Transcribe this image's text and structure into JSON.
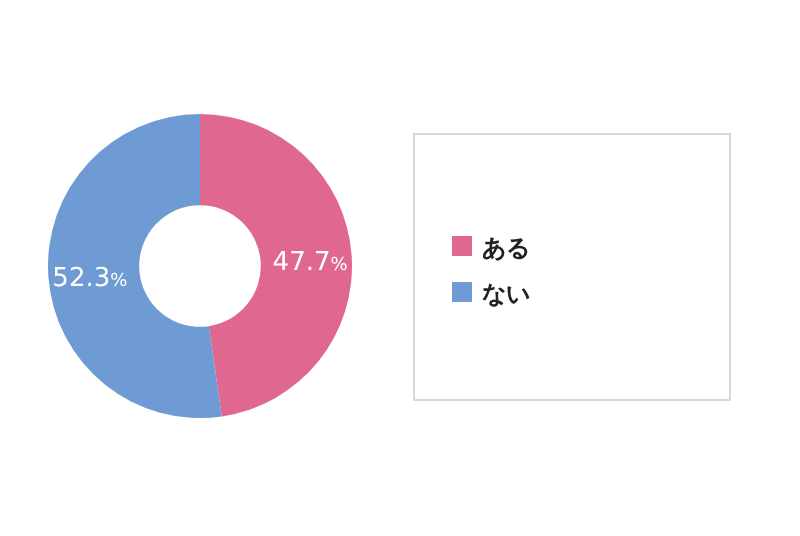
{
  "chart_data": {
    "type": "donut",
    "categories": [
      "ある",
      "ない"
    ],
    "values": [
      47.7,
      52.3
    ],
    "colors": [
      "#e0678f",
      "#6f9bd4"
    ],
    "value_labels": [
      "47.7%",
      "52.3%"
    ],
    "legend": "right"
  }
}
